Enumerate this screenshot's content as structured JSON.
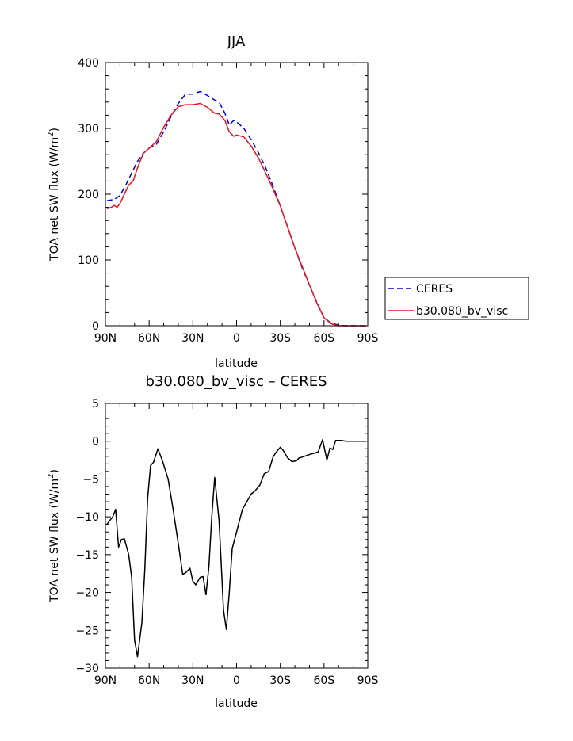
{
  "chart_data": [
    {
      "type": "line",
      "title": "JJA",
      "xlabel": "latitude",
      "ylabel": "TOA net SW flux (W/m",
      "ylabel_sup": "2",
      "ylabel_end": ")",
      "xlim": [
        90,
        -90
      ],
      "ylim": [
        0,
        400
      ],
      "xticks": [
        90,
        60,
        30,
        0,
        -30,
        -60,
        -90
      ],
      "xtick_labels": [
        "90N",
        "60N",
        "30N",
        "0",
        "30S",
        "60S",
        "90S"
      ],
      "yticks": [
        0,
        100,
        200,
        300,
        400
      ],
      "ytick_labels": [
        "0",
        "100",
        "200",
        "300",
        "400"
      ],
      "grid": false,
      "legend_placement": "right",
      "series": [
        {
          "name": "CERES",
          "color": "#0000cc",
          "dash": true,
          "x": [
            89,
            84,
            80,
            76,
            72,
            68,
            64,
            60,
            55,
            50,
            45,
            40,
            35,
            30,
            25,
            20,
            15,
            12,
            8,
            5,
            2,
            0,
            -5,
            -10,
            -15,
            -20,
            -25,
            -30,
            -35,
            -40,
            -45,
            -50,
            -55,
            -60,
            -65,
            -70,
            -75,
            -80,
            -85,
            -89
          ],
          "y": [
            190,
            192,
            198,
            214,
            232,
            250,
            262,
            270,
            276,
            295,
            318,
            338,
            352,
            352,
            356,
            350,
            343,
            340,
            323,
            305,
            312,
            310,
            300,
            283,
            263,
            240,
            212,
            182,
            150,
            118,
            88,
            62,
            36,
            12,
            4,
            1,
            0,
            0,
            0,
            0
          ]
        },
        {
          "name": "b30.080_bv_visc",
          "color": "#e8141e",
          "dash": false,
          "x": [
            89,
            86,
            84,
            82,
            80,
            77,
            74,
            71,
            68,
            64,
            60,
            55,
            50,
            45,
            40,
            35,
            30,
            25,
            20,
            15,
            12,
            8,
            5,
            2,
            0,
            -5,
            -10,
            -15,
            -20,
            -25,
            -30,
            -35,
            -40,
            -45,
            -50,
            -55,
            -60,
            -65,
            -70,
            -75,
            -80,
            -85,
            -89
          ],
          "y": [
            178,
            180,
            183,
            180,
            186,
            200,
            214,
            220,
            240,
            262,
            270,
            280,
            302,
            320,
            333,
            336,
            336,
            338,
            332,
            323,
            322,
            312,
            295,
            288,
            290,
            287,
            273,
            255,
            232,
            208,
            182,
            150,
            118,
            90,
            62,
            35,
            12,
            3,
            0,
            0,
            0,
            0,
            0
          ]
        }
      ]
    },
    {
      "type": "line",
      "title": "b30.080_bv_visc – CERES",
      "xlabel": "latitude",
      "ylabel": "TOA net SW flux (W/m",
      "ylabel_sup": "2",
      "ylabel_end": ")",
      "xlim": [
        90,
        -90
      ],
      "ylim": [
        -30,
        5
      ],
      "xticks": [
        90,
        60,
        30,
        0,
        -30,
        -60,
        -90
      ],
      "xtick_labels": [
        "90N",
        "60N",
        "30N",
        "0",
        "30S",
        "60S",
        "90S"
      ],
      "yticks": [
        5,
        0,
        -5,
        -10,
        -15,
        -20,
        -25,
        -30
      ],
      "ytick_labels": [
        "5",
        "0",
        "−5",
        "−10",
        "−15",
        "−20",
        "−25",
        "−30"
      ],
      "grid": false,
      "series": [
        {
          "color": "#000000",
          "dash": false,
          "x": [
            89,
            85,
            83,
            81,
            79,
            77,
            74,
            72,
            70,
            68,
            65,
            63,
            61,
            59,
            57,
            54,
            51,
            47,
            44,
            42,
            40,
            37,
            35,
            32,
            30,
            28,
            25,
            23,
            21,
            19,
            17,
            15,
            12,
            9,
            7,
            5,
            3,
            0,
            -2,
            -4,
            -7,
            -10,
            -13,
            -16,
            -19,
            -22,
            -25,
            -27,
            -30,
            -32,
            -35,
            -38,
            -41,
            -43,
            -45,
            -48,
            -51,
            -53,
            -56,
            -59,
            -62,
            -64,
            -66,
            -68,
            -70,
            -72,
            -75,
            -78,
            -81,
            -84,
            -89
          ],
          "y": [
            -11,
            -10,
            -9,
            -14,
            -13,
            -12.9,
            -15,
            -18,
            -26.3,
            -28.5,
            -24,
            -17,
            -7.5,
            -3.2,
            -2.8,
            -1,
            -2.5,
            -5,
            -8.5,
            -11,
            -13.5,
            -17.6,
            -17.4,
            -16.8,
            -18.5,
            -19,
            -18,
            -17.9,
            -20.3,
            -16.6,
            -10,
            -4.8,
            -10.5,
            -22.3,
            -24.9,
            -20,
            -14.2,
            -12,
            -10.5,
            -9,
            -8,
            -7,
            -6.5,
            -5.8,
            -4.3,
            -4,
            -2.1,
            -1.5,
            -0.8,
            -1.2,
            -2.2,
            -2.7,
            -2.6,
            -2.2,
            -2.1,
            -1.9,
            -1.7,
            -1.6,
            -1.4,
            0.2,
            -2.5,
            -0.9,
            -1.1,
            0.1,
            0.1,
            0.1,
            0,
            0,
            0,
            0,
            0
          ]
        }
      ]
    }
  ]
}
